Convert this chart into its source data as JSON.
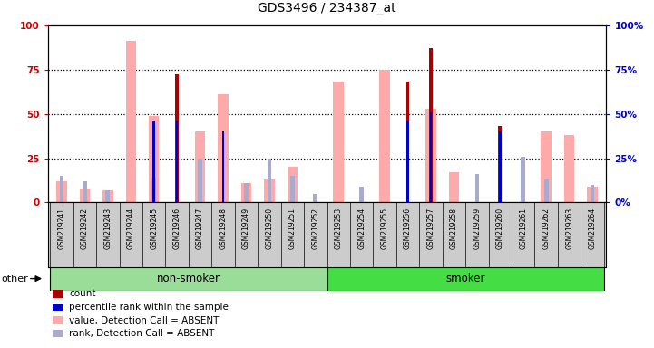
{
  "title": "GDS3496 / 234387_at",
  "samples": [
    "GSM219241",
    "GSM219242",
    "GSM219243",
    "GSM219244",
    "GSM219245",
    "GSM219246",
    "GSM219247",
    "GSM219248",
    "GSM219249",
    "GSM219250",
    "GSM219251",
    "GSM219252",
    "GSM219253",
    "GSM219254",
    "GSM219255",
    "GSM219256",
    "GSM219257",
    "GSM219258",
    "GSM219259",
    "GSM219260",
    "GSM219261",
    "GSM219262",
    "GSM219263",
    "GSM219264"
  ],
  "count": [
    0,
    0,
    0,
    0,
    0,
    72,
    0,
    0,
    0,
    0,
    0,
    0,
    0,
    0,
    0,
    68,
    87,
    0,
    0,
    43,
    0,
    0,
    0,
    0
  ],
  "percentile_rank": [
    0,
    0,
    0,
    0,
    46,
    46,
    0,
    40,
    0,
    0,
    0,
    0,
    0,
    0,
    0,
    46,
    51,
    0,
    0,
    40,
    0,
    0,
    0,
    0
  ],
  "value_absent": [
    12,
    8,
    7,
    91,
    49,
    0,
    40,
    61,
    11,
    13,
    20,
    0,
    68,
    0,
    75,
    0,
    53,
    17,
    0,
    0,
    0,
    40,
    38,
    9
  ],
  "rank_absent": [
    15,
    12,
    7,
    0,
    14,
    0,
    25,
    0,
    11,
    25,
    15,
    5,
    0,
    9,
    0,
    0,
    0,
    0,
    16,
    0,
    26,
    13,
    0,
    10
  ],
  "non_smoker_count": 12,
  "smoker_count": 12,
  "color_count": "#aa0000",
  "color_rank": "#0000cc",
  "color_value_absent": "#ffaaaa",
  "color_rank_absent": "#aaaacc",
  "color_nonsmoker": "#99dd99",
  "color_smoker": "#44dd44",
  "color_axis_left": "#cc0000",
  "color_axis_right": "#0000cc",
  "ylim": [
    0,
    100
  ],
  "yticks": [
    0,
    25,
    50,
    75,
    100
  ],
  "plot_bg": "#ffffff",
  "label_bg": "#cccccc",
  "legend_items": [
    [
      "#aa0000",
      "count"
    ],
    [
      "#0000cc",
      "percentile rank within the sample"
    ],
    [
      "#ffaaaa",
      "value, Detection Call = ABSENT"
    ],
    [
      "#aaaacc",
      "rank, Detection Call = ABSENT"
    ]
  ]
}
